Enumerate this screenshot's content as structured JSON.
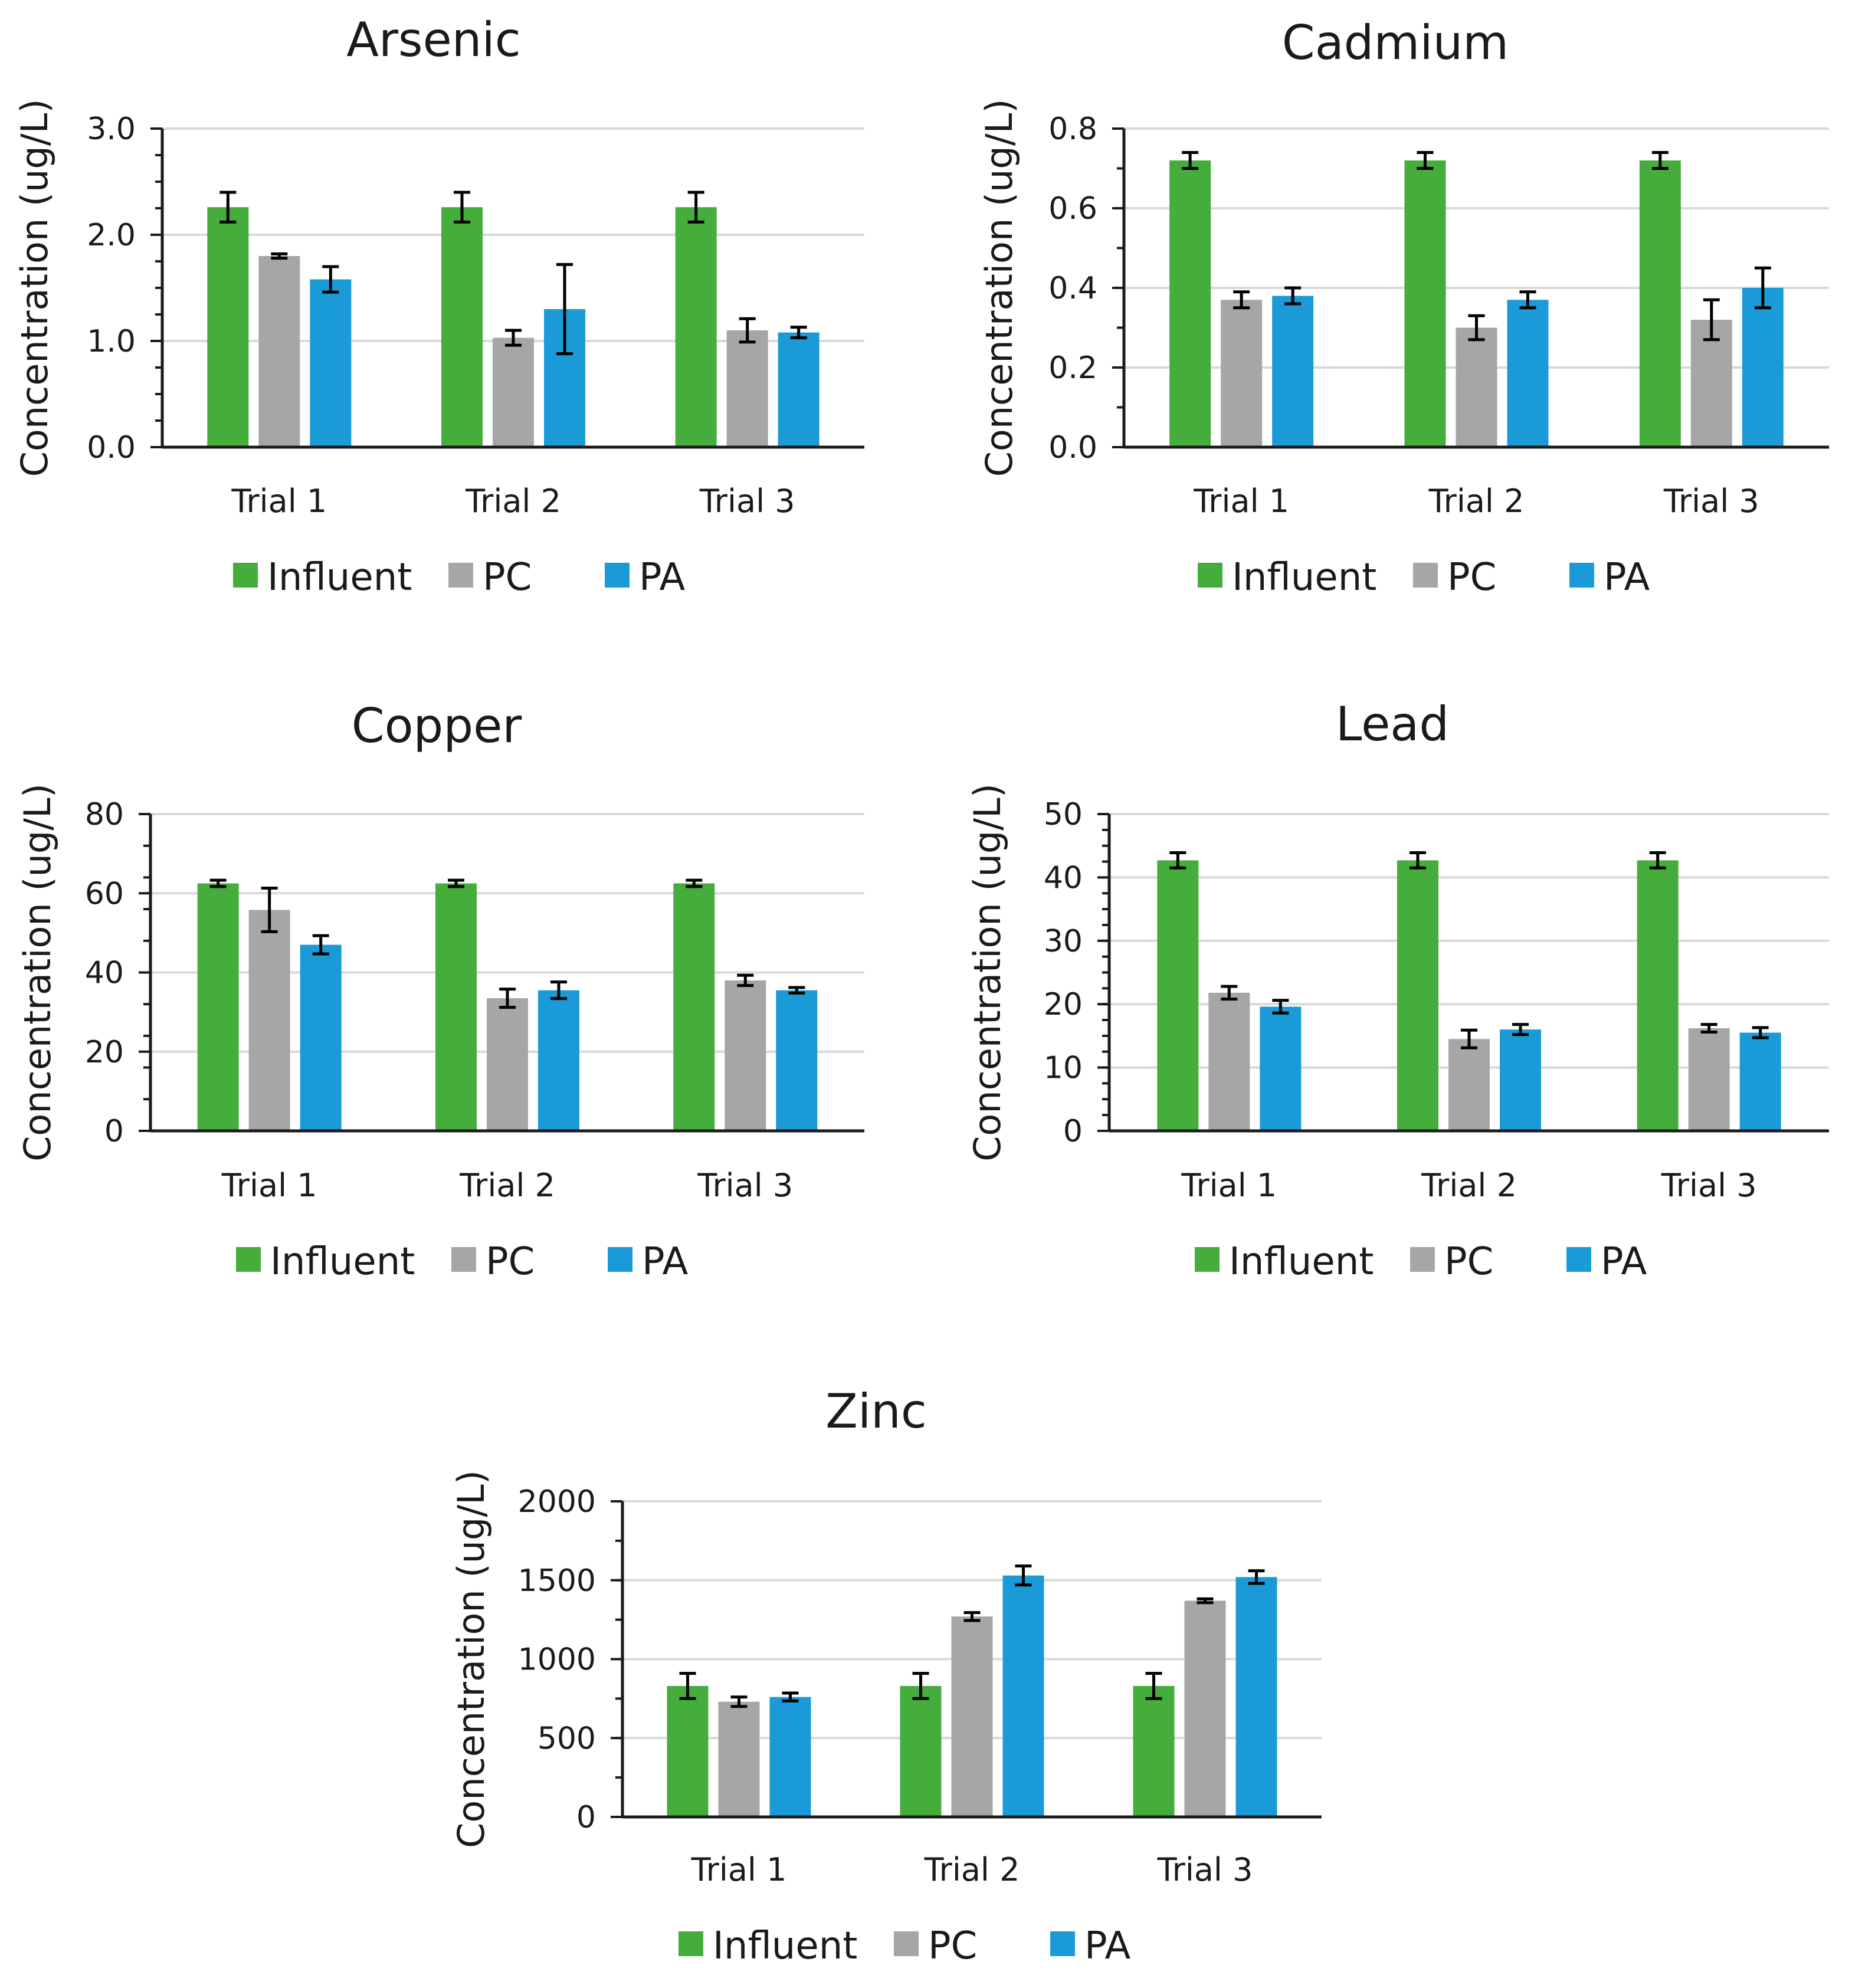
{
  "colors": {
    "Influent": "#45ad3b",
    "PC": "#a6a6a6",
    "PA": "#1a9bd7",
    "grid": "#d9d9d9",
    "axis": "#1a1a1a"
  },
  "chart_data": [
    {
      "type": "bar",
      "title": "Arsenic",
      "ylabel": "Concentration (ug/L)",
      "xlabel": "",
      "categories": [
        "Trial 1",
        "Trial 2",
        "Trial 3"
      ],
      "ylim": [
        0,
        3
      ],
      "yticks": [
        "0.0",
        "1.0",
        "2.0",
        "3.0"
      ],
      "ytick_values": [
        0,
        1,
        2,
        3
      ],
      "minor_step": 0.25,
      "series": [
        {
          "name": "Influent",
          "values": [
            2.26,
            2.26,
            2.26
          ],
          "errors": [
            0.14,
            0.14,
            0.14
          ]
        },
        {
          "name": "PC",
          "values": [
            1.8,
            1.03,
            1.1
          ],
          "errors": [
            0.02,
            0.07,
            0.11
          ]
        },
        {
          "name": "PA",
          "values": [
            1.58,
            1.3,
            1.08
          ],
          "errors": [
            0.12,
            0.42,
            0.05
          ]
        }
      ],
      "legend": "bottom"
    },
    {
      "type": "bar",
      "title": "Cadmium",
      "ylabel": "Concentration (ug/L)",
      "xlabel": "",
      "categories": [
        "Trial 1",
        "Trial 2",
        "Trial 3"
      ],
      "ylim": [
        0,
        0.8
      ],
      "yticks": [
        "0.0",
        "0.2",
        "0.4",
        "0.6",
        "0.8"
      ],
      "ytick_values": [
        0,
        0.2,
        0.4,
        0.6,
        0.8
      ],
      "minor_step": 0.1,
      "series": [
        {
          "name": "Influent",
          "values": [
            0.72,
            0.72,
            0.72
          ],
          "errors": [
            0.02,
            0.02,
            0.02
          ]
        },
        {
          "name": "PC",
          "values": [
            0.37,
            0.3,
            0.32
          ],
          "errors": [
            0.02,
            0.03,
            0.05
          ]
        },
        {
          "name": "PA",
          "values": [
            0.38,
            0.37,
            0.4
          ],
          "errors": [
            0.02,
            0.02,
            0.05
          ]
        }
      ],
      "legend": "bottom"
    },
    {
      "type": "bar",
      "title": "Copper",
      "ylabel": "Concentration (ug/L)",
      "xlabel": "",
      "categories": [
        "Trial 1",
        "Trial 2",
        "Trial 3"
      ],
      "ylim": [
        0,
        80
      ],
      "yticks": [
        "0",
        "20",
        "40",
        "60",
        "80"
      ],
      "ytick_values": [
        0,
        20,
        40,
        60,
        80
      ],
      "minor_step": 8,
      "series": [
        {
          "name": "Influent",
          "values": [
            62.5,
            62.5,
            62.5
          ],
          "errors": [
            0.8,
            0.8,
            0.8
          ]
        },
        {
          "name": "PC",
          "values": [
            55.8,
            33.5,
            38.0
          ],
          "errors": [
            5.5,
            2.3,
            1.3
          ]
        },
        {
          "name": "PA",
          "values": [
            47.0,
            35.5,
            35.5
          ],
          "errors": [
            2.3,
            2.1,
            0.7
          ]
        }
      ],
      "legend": "bottom"
    },
    {
      "type": "bar",
      "title": "Lead",
      "ylabel": "Concentration (ug/L)",
      "xlabel": "",
      "categories": [
        "Trial 1",
        "Trial 2",
        "Trial 3"
      ],
      "ylim": [
        0,
        50
      ],
      "yticks": [
        "0",
        "10",
        "20",
        "30",
        "40",
        "50"
      ],
      "ytick_values": [
        0,
        10,
        20,
        30,
        40,
        50
      ],
      "minor_step": 2.5,
      "series": [
        {
          "name": "Influent",
          "values": [
            42.7,
            42.7,
            42.7
          ],
          "errors": [
            1.2,
            1.2,
            1.2
          ]
        },
        {
          "name": "PC",
          "values": [
            21.8,
            14.5,
            16.2
          ],
          "errors": [
            1.0,
            1.4,
            0.6
          ]
        },
        {
          "name": "PA",
          "values": [
            19.6,
            16.0,
            15.5
          ],
          "errors": [
            1.0,
            0.8,
            0.8
          ]
        }
      ],
      "legend": "bottom"
    },
    {
      "type": "bar",
      "title": "Zinc",
      "ylabel": "Concentration (ug/L)",
      "xlabel": "",
      "categories": [
        "Trial 1",
        "Trial 2",
        "Trial 3"
      ],
      "ylim": [
        0,
        2000
      ],
      "yticks": [
        "0",
        "500",
        "1000",
        "1500",
        "2000"
      ],
      "ytick_values": [
        0,
        500,
        1000,
        1500,
        2000
      ],
      "minor_step": 250,
      "series": [
        {
          "name": "Influent",
          "values": [
            830,
            830,
            830
          ],
          "errors": [
            80,
            80,
            80
          ]
        },
        {
          "name": "PC",
          "values": [
            730,
            1270,
            1370
          ],
          "errors": [
            30,
            25,
            12
          ]
        },
        {
          "name": "PA",
          "values": [
            760,
            1530,
            1520
          ],
          "errors": [
            25,
            60,
            40
          ]
        }
      ],
      "legend": "bottom"
    }
  ]
}
